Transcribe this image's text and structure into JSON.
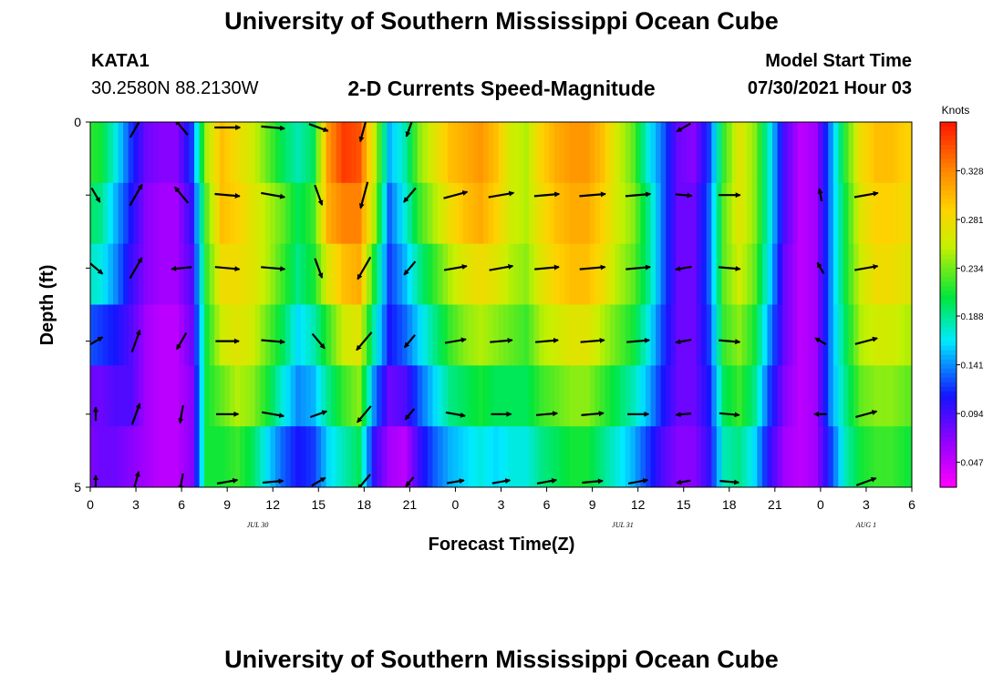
{
  "header": {
    "title": "University of Southern Mississippi Ocean Cube",
    "station_id": "KATA1",
    "station_coords": "30.2580N  88.2130W",
    "chart_title": "2-D Currents Speed-Magnitude",
    "model_start_label": "Model Start Time",
    "model_start_value": "07/30/2021 Hour 03"
  },
  "footer": {
    "title": "University of Southern Mississippi Ocean Cube"
  },
  "colors": {
    "arrow": "#000000",
    "axis": "#000000"
  },
  "chart_data": {
    "type": "heatmap",
    "title": "2-D Currents Speed-Magnitude",
    "xlabel": "Forecast Time(Z)",
    "ylabel": "Depth (ft)",
    "x_range_hours": [
      0,
      54
    ],
    "y_range_ft": [
      0,
      5
    ],
    "y_ticks": [
      {
        "value": 0,
        "label": "0"
      },
      {
        "value": 5,
        "label": "5"
      }
    ],
    "x_tick_labels": [
      "0",
      "3",
      "6",
      "9",
      "12",
      "15",
      "18",
      "21",
      "0",
      "3",
      "6",
      "9",
      "12",
      "15",
      "18",
      "21",
      "0",
      "3",
      "6"
    ],
    "date_labels": [
      {
        "hour": 11,
        "label": "JUL 30"
      },
      {
        "hour": 35,
        "label": "JUL 31"
      },
      {
        "hour": 51,
        "label": "AUG 1"
      }
    ],
    "colorbar": {
      "units": "Knots",
      "range": [
        0.023,
        0.375
      ],
      "ticks": [
        0.047,
        0.094,
        0.141,
        0.188,
        0.234,
        0.281,
        0.328
      ]
    },
    "depth_layers_ft": [
      0,
      1,
      2,
      3,
      4,
      5
    ],
    "hourly_speed_knots": [
      [
        0.22,
        0.2,
        0.18,
        0.13,
        0.08,
        0.07
      ],
      [
        0.21,
        0.19,
        0.17,
        0.12,
        0.08,
        0.08
      ],
      [
        0.17,
        0.15,
        0.14,
        0.11,
        0.09,
        0.08
      ],
      [
        0.12,
        0.11,
        0.1,
        0.09,
        0.09,
        0.07
      ],
      [
        0.08,
        0.07,
        0.07,
        0.06,
        0.06,
        0.06
      ],
      [
        0.07,
        0.06,
        0.06,
        0.05,
        0.05,
        0.05
      ],
      [
        0.07,
        0.06,
        0.06,
        0.05,
        0.05,
        0.05
      ],
      [
        0.12,
        0.1,
        0.09,
        0.08,
        0.07,
        0.07
      ],
      [
        0.25,
        0.23,
        0.22,
        0.21,
        0.21,
        0.21
      ],
      [
        0.3,
        0.3,
        0.28,
        0.26,
        0.23,
        0.21
      ],
      [
        0.28,
        0.29,
        0.28,
        0.27,
        0.25,
        0.22
      ],
      [
        0.26,
        0.27,
        0.27,
        0.26,
        0.24,
        0.2
      ],
      [
        0.23,
        0.25,
        0.25,
        0.23,
        0.21,
        0.16
      ],
      [
        0.2,
        0.23,
        0.22,
        0.2,
        0.17,
        0.13
      ],
      [
        0.18,
        0.2,
        0.19,
        0.16,
        0.14,
        0.11
      ],
      [
        0.2,
        0.22,
        0.21,
        0.18,
        0.15,
        0.12
      ],
      [
        0.32,
        0.31,
        0.27,
        0.22,
        0.19,
        0.16
      ],
      [
        0.36,
        0.33,
        0.3,
        0.26,
        0.22,
        0.18
      ],
      [
        0.35,
        0.33,
        0.31,
        0.27,
        0.24,
        0.2
      ],
      [
        0.26,
        0.25,
        0.21,
        0.18,
        0.14,
        0.1
      ],
      [
        0.15,
        0.13,
        0.12,
        0.11,
        0.08,
        0.06
      ],
      [
        0.18,
        0.17,
        0.15,
        0.13,
        0.09,
        0.05
      ],
      [
        0.24,
        0.22,
        0.19,
        0.16,
        0.13,
        0.1
      ],
      [
        0.27,
        0.25,
        0.22,
        0.19,
        0.16,
        0.13
      ],
      [
        0.3,
        0.28,
        0.25,
        0.22,
        0.19,
        0.15
      ],
      [
        0.31,
        0.3,
        0.27,
        0.24,
        0.2,
        0.16
      ],
      [
        0.32,
        0.31,
        0.28,
        0.25,
        0.21,
        0.17
      ],
      [
        0.3,
        0.29,
        0.27,
        0.24,
        0.2,
        0.16
      ],
      [
        0.26,
        0.26,
        0.25,
        0.23,
        0.2,
        0.17
      ],
      [
        0.25,
        0.25,
        0.24,
        0.22,
        0.2,
        0.17
      ],
      [
        0.29,
        0.28,
        0.27,
        0.25,
        0.22,
        0.19
      ],
      [
        0.31,
        0.3,
        0.29,
        0.26,
        0.23,
        0.2
      ],
      [
        0.32,
        0.31,
        0.3,
        0.27,
        0.24,
        0.21
      ],
      [
        0.32,
        0.31,
        0.3,
        0.27,
        0.24,
        0.21
      ],
      [
        0.3,
        0.29,
        0.28,
        0.25,
        0.22,
        0.19
      ],
      [
        0.26,
        0.26,
        0.25,
        0.23,
        0.2,
        0.17
      ],
      [
        0.23,
        0.24,
        0.23,
        0.21,
        0.18,
        0.15
      ],
      [
        0.17,
        0.19,
        0.19,
        0.17,
        0.15,
        0.12
      ],
      [
        0.13,
        0.13,
        0.13,
        0.12,
        0.11,
        0.09
      ],
      [
        0.08,
        0.08,
        0.08,
        0.08,
        0.08,
        0.07
      ],
      [
        0.07,
        0.08,
        0.08,
        0.08,
        0.08,
        0.07
      ],
      [
        0.12,
        0.13,
        0.13,
        0.12,
        0.11,
        0.1
      ],
      [
        0.22,
        0.23,
        0.23,
        0.22,
        0.2,
        0.18
      ],
      [
        0.27,
        0.27,
        0.26,
        0.24,
        0.22,
        0.19
      ],
      [
        0.24,
        0.24,
        0.23,
        0.21,
        0.19,
        0.16
      ],
      [
        0.17,
        0.17,
        0.16,
        0.14,
        0.12,
        0.1
      ],
      [
        0.09,
        0.09,
        0.08,
        0.08,
        0.07,
        0.06
      ],
      [
        0.05,
        0.05,
        0.05,
        0.05,
        0.05,
        0.05
      ],
      [
        0.06,
        0.06,
        0.06,
        0.06,
        0.06,
        0.06
      ],
      [
        0.14,
        0.14,
        0.14,
        0.14,
        0.14,
        0.12
      ],
      [
        0.22,
        0.21,
        0.21,
        0.2,
        0.19,
        0.18
      ],
      [
        0.28,
        0.27,
        0.26,
        0.25,
        0.23,
        0.21
      ],
      [
        0.3,
        0.29,
        0.28,
        0.26,
        0.24,
        0.22
      ],
      [
        0.3,
        0.29,
        0.28,
        0.26,
        0.24,
        0.22
      ],
      [
        0.29,
        0.28,
        0.27,
        0.25,
        0.23,
        0.21
      ]
    ],
    "vector_hours": [
      0,
      3,
      6,
      9,
      12,
      15,
      18,
      21,
      24,
      27,
      30,
      33,
      36,
      39,
      42,
      45,
      48,
      51,
      54
    ],
    "vector_depths_ft": [
      0,
      1,
      2,
      3,
      4,
      5
    ],
    "vector_directions_deg": [
      [
        null,
        150,
        130,
        60,
        0,
        0
      ],
      [
        30,
        30,
        30,
        20,
        20,
        15
      ],
      [
        -40,
        -40,
        -95,
        -150,
        -170,
        -170
      ],
      [
        90,
        95,
        95,
        90,
        90,
        80
      ],
      [
        95,
        100,
        95,
        95,
        100,
        85
      ],
      [
        110,
        160,
        160,
        140,
        70,
        60
      ],
      [
        -165,
        -165,
        -150,
        -140,
        -140,
        -140
      ],
      [
        -160,
        -140,
        -140,
        -140,
        -140,
        -140
      ],
      [
        null,
        75,
        80,
        80,
        100,
        80
      ],
      [
        null,
        80,
        80,
        85,
        90,
        80
      ],
      [
        null,
        85,
        85,
        85,
        85,
        80
      ],
      [
        null,
        85,
        85,
        85,
        85,
        85
      ],
      [
        null,
        85,
        85,
        85,
        90,
        80
      ],
      [
        -120,
        95,
        -100,
        -100,
        -95,
        -100
      ],
      [
        null,
        90,
        95,
        95,
        95,
        95
      ],
      [
        null,
        null,
        null,
        null,
        null,
        null
      ],
      [
        null,
        -10,
        -30,
        -60,
        -90,
        null
      ],
      [
        null,
        80,
        80,
        75,
        75,
        70
      ],
      [
        null,
        null,
        null,
        null,
        null,
        null
      ]
    ],
    "vector_speeds_knots": [
      [
        0,
        0.13,
        0.16,
        0.12,
        0.08,
        0.06
      ],
      [
        0.25,
        0.28,
        0.27,
        0.26,
        0.24,
        0.21
      ],
      [
        0.18,
        0.21,
        0.2,
        0.18,
        0.16,
        0.14
      ],
      [
        0.3,
        0.29,
        0.28,
        0.26,
        0.24,
        0.21
      ],
      [
        0.26,
        0.27,
        0.27,
        0.26,
        0.24,
        0.21
      ],
      [
        0.2,
        0.22,
        0.21,
        0.18,
        0.15,
        0.12
      ],
      [
        0.36,
        0.33,
        0.3,
        0.26,
        0.22,
        0.18
      ],
      [
        0.18,
        0.17,
        0.15,
        0.13,
        0.09,
        0.05
      ],
      [
        0,
        0.28,
        0.25,
        0.22,
        0.19,
        0.15
      ],
      [
        0,
        0.3,
        0.27,
        0.24,
        0.2,
        0.16
      ],
      [
        0,
        0.29,
        0.28,
        0.25,
        0.22,
        0.19
      ],
      [
        0,
        0.31,
        0.3,
        0.27,
        0.24,
        0.21
      ],
      [
        0,
        0.29,
        0.28,
        0.25,
        0.22,
        0.19
      ],
      [
        0.12,
        0.13,
        0.13,
        0.12,
        0.11,
        0.09
      ],
      [
        0,
        0.23,
        0.23,
        0.22,
        0.2,
        0.18
      ],
      [
        0,
        0,
        0,
        0,
        0,
        0
      ],
      [
        0,
        0.06,
        0.06,
        0.06,
        0.06,
        0
      ],
      [
        0,
        0.27,
        0.26,
        0.25,
        0.23,
        0.21
      ],
      [
        0,
        0,
        0,
        0,
        0,
        0
      ]
    ]
  }
}
